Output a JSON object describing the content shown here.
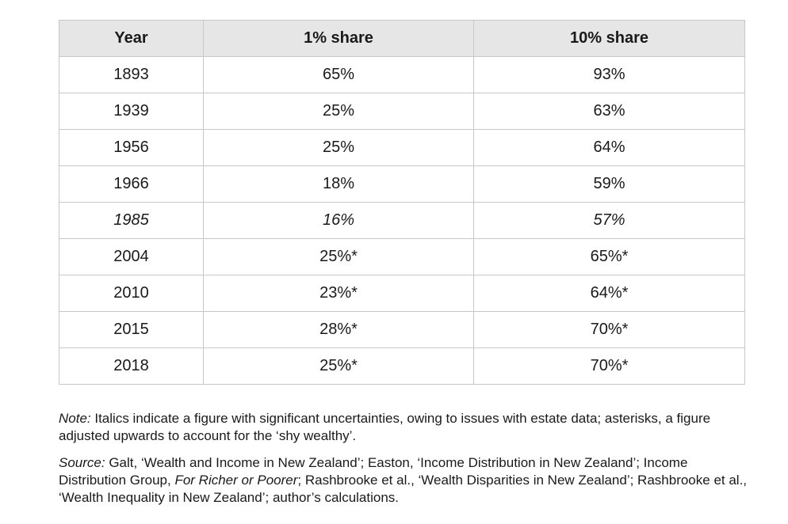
{
  "table": {
    "headers": [
      "Year",
      "1% share",
      "10% share"
    ],
    "rows": [
      {
        "year": "1893",
        "one": "65%",
        "ten": "93%",
        "italic": false
      },
      {
        "year": "1939",
        "one": "25%",
        "ten": "63%",
        "italic": false
      },
      {
        "year": "1956",
        "one": "25%",
        "ten": "64%",
        "italic": false
      },
      {
        "year": "1966",
        "one": "18%",
        "ten": "59%",
        "italic": false
      },
      {
        "year": "1985",
        "one": "16%",
        "ten": "57%",
        "italic": true
      },
      {
        "year": "2004",
        "one": "25%*",
        "ten": "65%*",
        "italic": false
      },
      {
        "year": "2010",
        "one": "23%*",
        "ten": "64%*",
        "italic": false
      },
      {
        "year": "2015",
        "one": "28%*",
        "ten": "70%*",
        "italic": false
      },
      {
        "year": "2018",
        "one": "25%*",
        "ten": "70%*",
        "italic": false
      }
    ]
  },
  "note": {
    "label": "Note:",
    "text": " Italics indicate a figure with significant uncertainties, owing to issues with estate data; asterisks, a figure adjusted upwards to account for the ‘shy wealthy’."
  },
  "source": {
    "label": "Source:",
    "part1": " Galt, ‘Wealth and Income in New Zealand’; Easton, ‘Income Distribution in New Zealand’; Income Distribution Group, ",
    "italic_title": "For Richer or Poorer",
    "part2": "; Rashbrooke et al., ‘Wealth Disparities in New Zealand’; Rashbrooke et al., ‘Wealth Inequality in New Zealand’; author’s calculations."
  }
}
